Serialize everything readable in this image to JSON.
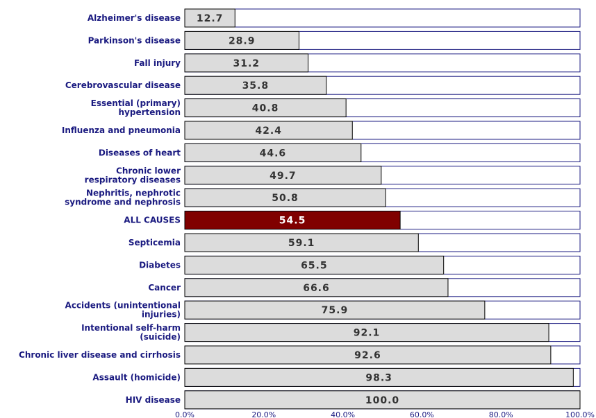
{
  "chart_data": {
    "type": "bar",
    "orientation": "horizontal",
    "categories": [
      "Alzheimer's disease",
      "Parkinson's disease",
      "Fall injury",
      "Cerebrovascular disease",
      "Essential (primary) hypertension",
      "Influenza and pneumonia",
      "Diseases of heart",
      "Chronic lower respiratory diseases",
      "Nephritis, nephrotic syndrome and nephrosis",
      "ALL CAUSES",
      "Septicemia",
      "Diabetes",
      "Cancer",
      "Accidents (unintentional injuries)",
      "Intentional self-harm (suicide)",
      "Chronic liver disease and cirrhosis",
      "Assault (homicide)",
      "HIV disease"
    ],
    "category_label_lines": [
      [
        "Alzheimer's disease"
      ],
      [
        "Parkinson's disease"
      ],
      [
        "Fall injury"
      ],
      [
        "Cerebrovascular disease"
      ],
      [
        "Essential (primary)",
        "hypertension"
      ],
      [
        "Influenza and pneumonia"
      ],
      [
        "Diseases of heart"
      ],
      [
        "Chronic lower",
        "respiratory diseases"
      ],
      [
        "Nephritis, nephrotic",
        "syndrome and nephrosis"
      ],
      [
        "ALL CAUSES"
      ],
      [
        "Septicemia"
      ],
      [
        "Diabetes"
      ],
      [
        "Cancer"
      ],
      [
        "Accidents (unintentional",
        "injuries)"
      ],
      [
        "Intentional self-harm",
        "(suicide)"
      ],
      [
        "Chronic liver disease and cirrhosis"
      ],
      [
        "Assault (homicide)"
      ],
      [
        "HIV disease"
      ]
    ],
    "values": [
      12.7,
      28.9,
      31.2,
      35.8,
      40.8,
      42.4,
      44.6,
      49.7,
      50.8,
      54.5,
      59.1,
      65.5,
      66.6,
      75.9,
      92.1,
      92.6,
      98.3,
      100.0
    ],
    "value_labels": [
      "12.7",
      "28.9",
      "31.2",
      "35.8",
      "40.8",
      "42.4",
      "44.6",
      "49.7",
      "50.8",
      "54.5",
      "59.1",
      "65.5",
      "66.6",
      "75.9",
      "92.1",
      "92.6",
      "98.3",
      "100.0"
    ],
    "highlight_category": "ALL CAUSES",
    "xlim": [
      0,
      100
    ],
    "x_ticks": [
      0,
      20,
      40,
      60,
      80,
      100
    ],
    "x_tick_labels": [
      "0.0%",
      "20.0%",
      "40.0%",
      "60.0%",
      "80.0%",
      "100.0%"
    ],
    "title": "",
    "xlabel": "",
    "ylabel": "",
    "grid": false,
    "colors": {
      "bar": "#dcdcdc",
      "bar_highlight": "#800000",
      "bar_border": "#000000",
      "track_border": "#1a1a80",
      "label_text": "#1a1a80",
      "value_text": "#333333",
      "value_text_highlight": "#ffffff"
    }
  }
}
